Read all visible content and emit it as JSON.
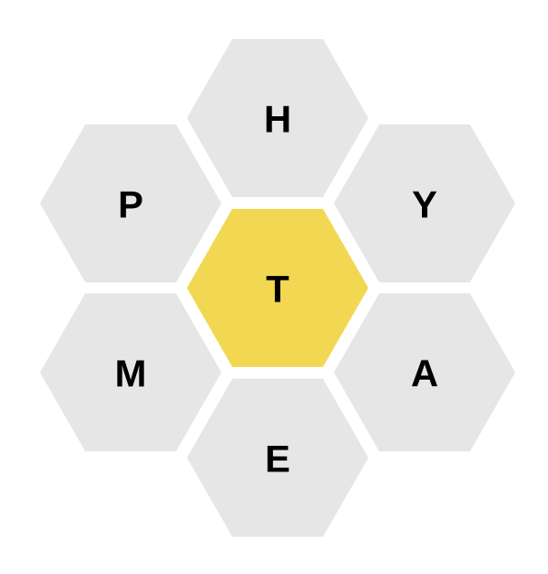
{
  "colors": {
    "outer_cell": "#e6e6e6",
    "center_cell": "#f2d852",
    "letter": "#000000"
  },
  "hive": {
    "center": {
      "letter": "T"
    },
    "outer": [
      {
        "id": "top",
        "letter": "H"
      },
      {
        "id": "upper-left",
        "letter": "P"
      },
      {
        "id": "upper-right",
        "letter": "Y"
      },
      {
        "id": "lower-left",
        "letter": "M"
      },
      {
        "id": "lower-right",
        "letter": "A"
      },
      {
        "id": "bottom",
        "letter": "E"
      }
    ]
  }
}
